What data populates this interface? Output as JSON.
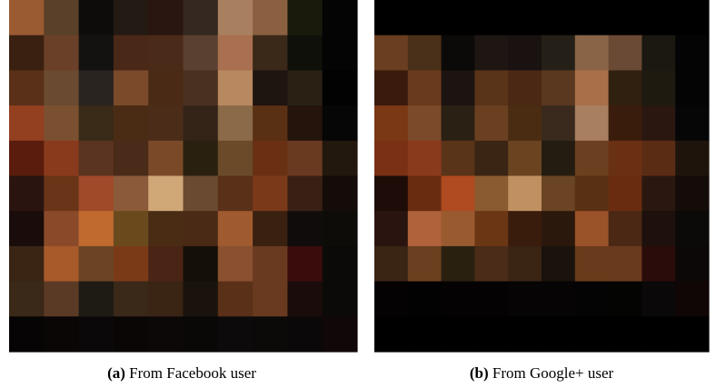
{
  "figures": [
    {
      "label": "(a)",
      "caption": "From Facebook user"
    },
    {
      "label": "(b)",
      "caption": "From Google+ user"
    }
  ]
}
